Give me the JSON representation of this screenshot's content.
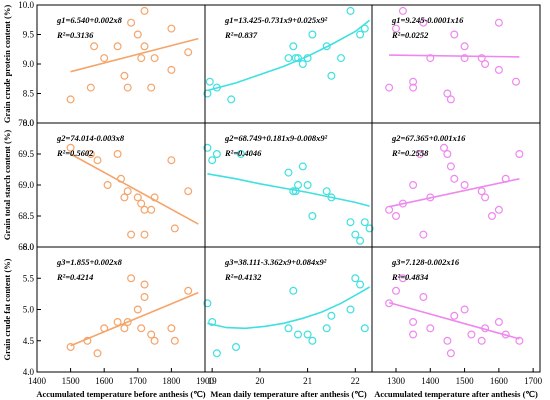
{
  "chart_data": [
    {
      "type": "scatter",
      "panel": "a1",
      "ylabel": "Grain crude protein content (%)",
      "xlim": [
        1400,
        1900
      ],
      "ylim": [
        8.0,
        10.0
      ],
      "equation": "g1=6.540+0.002x8",
      "r2": "R²=0.3136",
      "points": [
        [
          1500,
          8.4
        ],
        [
          1560,
          8.6
        ],
        [
          1570,
          9.3
        ],
        [
          1600,
          9.1
        ],
        [
          1640,
          9.3
        ],
        [
          1660,
          8.8
        ],
        [
          1670,
          8.6
        ],
        [
          1680,
          9.7
        ],
        [
          1700,
          9.5
        ],
        [
          1710,
          9.1
        ],
        [
          1720,
          9.9
        ],
        [
          1720,
          9.3
        ],
        [
          1740,
          8.6
        ],
        [
          1750,
          9.1
        ],
        [
          1800,
          9.6
        ],
        [
          1800,
          8.9
        ],
        [
          1850,
          9.2
        ]
      ],
      "fit": {
        "kind": "linear",
        "x": [
          1500,
          1880
        ],
        "y": [
          8.87,
          9.43
        ]
      },
      "color": "#f5a46a"
    },
    {
      "type": "scatter",
      "panel": "b1",
      "xlim": [
        18.85,
        22.35
      ],
      "ylim": [
        8.0,
        10.0
      ],
      "equation": "g1=13.425-0.731x9+0.025x9²",
      "r2": "R²=0.837",
      "points": [
        [
          18.9,
          8.5
        ],
        [
          18.95,
          8.7
        ],
        [
          19.1,
          8.6
        ],
        [
          19.4,
          8.4
        ],
        [
          20.6,
          9.1
        ],
        [
          20.7,
          9.3
        ],
        [
          20.75,
          9.1
        ],
        [
          20.8,
          9.1
        ],
        [
          20.9,
          9.0
        ],
        [
          21.0,
          9.1
        ],
        [
          21.1,
          9.5
        ],
        [
          21.4,
          9.3
        ],
        [
          21.5,
          8.8
        ],
        [
          21.7,
          9.1
        ],
        [
          21.9,
          9.9
        ],
        [
          22.1,
          9.5
        ],
        [
          22.2,
          9.6
        ]
      ],
      "fit": {
        "kind": "curve",
        "x": [
          18.9,
          19.5,
          20.0,
          20.5,
          21.0,
          21.5,
          22.0,
          22.3
        ],
        "y": [
          8.55,
          8.68,
          8.82,
          8.96,
          9.13,
          9.33,
          9.55,
          9.74
        ]
      },
      "color": "#40e0e0"
    },
    {
      "type": "scatter",
      "panel": "c1",
      "xlim": [
        1230,
        1720
      ],
      "ylim": [
        8.0,
        10.0
      ],
      "equation": "g1=9.245-0.0001x16",
      "r2": "R²=0.0252",
      "points": [
        [
          1280,
          8.6
        ],
        [
          1300,
          9.6
        ],
        [
          1320,
          9.9
        ],
        [
          1350,
          8.7
        ],
        [
          1350,
          8.6
        ],
        [
          1380,
          9.7
        ],
        [
          1400,
          9.1
        ],
        [
          1450,
          8.5
        ],
        [
          1460,
          8.4
        ],
        [
          1470,
          9.5
        ],
        [
          1500,
          9.3
        ],
        [
          1500,
          9.1
        ],
        [
          1550,
          9.1
        ],
        [
          1560,
          9.0
        ],
        [
          1600,
          9.7
        ],
        [
          1600,
          8.9
        ],
        [
          1650,
          8.7
        ]
      ],
      "fit": {
        "kind": "linear",
        "x": [
          1280,
          1660
        ],
        "y": [
          9.15,
          9.12
        ]
      },
      "color": "#ee88ee"
    },
    {
      "type": "scatter",
      "panel": "a2",
      "ylabel": "Grain total starch content (%)",
      "xlim": [
        1400,
        1900
      ],
      "ylim": [
        68.0,
        70.0
      ],
      "equation": "g2=74.014-0.003x8",
      "r2": "R²=0.5602",
      "points": [
        [
          1500,
          69.6
        ],
        [
          1560,
          69.5
        ],
        [
          1580,
          69.4
        ],
        [
          1610,
          69.0
        ],
        [
          1640,
          69.5
        ],
        [
          1650,
          69.1
        ],
        [
          1660,
          68.8
        ],
        [
          1670,
          68.9
        ],
        [
          1680,
          68.2
        ],
        [
          1700,
          68.8
        ],
        [
          1710,
          68.7
        ],
        [
          1720,
          68.6
        ],
        [
          1720,
          68.2
        ],
        [
          1740,
          68.6
        ],
        [
          1750,
          68.8
        ],
        [
          1800,
          69.4
        ],
        [
          1810,
          68.3
        ],
        [
          1850,
          68.9
        ]
      ],
      "fit": {
        "kind": "linear",
        "x": [
          1500,
          1880
        ],
        "y": [
          69.5,
          68.37
        ]
      },
      "color": "#f5a46a"
    },
    {
      "type": "scatter",
      "panel": "b2",
      "xlim": [
        18.85,
        22.35
      ],
      "ylim": [
        68.0,
        70.0
      ],
      "equation": "g2=68.749+0.181x9-0.008x9²",
      "r2": "R²=0.4046",
      "points": [
        [
          18.9,
          69.6
        ],
        [
          19.0,
          69.4
        ],
        [
          19.1,
          69.5
        ],
        [
          19.6,
          69.5
        ],
        [
          20.6,
          69.2
        ],
        [
          20.7,
          68.9
        ],
        [
          20.75,
          68.9
        ],
        [
          20.8,
          69.0
        ],
        [
          20.9,
          69.3
        ],
        [
          21.0,
          69.0
        ],
        [
          21.1,
          68.5
        ],
        [
          21.4,
          68.9
        ],
        [
          21.5,
          68.8
        ],
        [
          21.9,
          68.4
        ],
        [
          22.0,
          68.2
        ],
        [
          22.1,
          68.1
        ],
        [
          22.2,
          68.4
        ],
        [
          22.3,
          68.3
        ]
      ],
      "fit": {
        "kind": "curve",
        "x": [
          18.9,
          19.5,
          20.0,
          20.5,
          21.0,
          21.5,
          22.0,
          22.3
        ],
        "y": [
          69.18,
          69.1,
          69.02,
          68.95,
          68.88,
          68.8,
          68.72,
          68.66
        ]
      },
      "color": "#40e0e0"
    },
    {
      "type": "scatter",
      "panel": "c2",
      "xlim": [
        1230,
        1720
      ],
      "ylim": [
        68.0,
        70.0
      ],
      "equation": "g2=67.365+0.001x16",
      "r2": "R²=0.2558",
      "points": [
        [
          1280,
          68.6
        ],
        [
          1300,
          68.5
        ],
        [
          1320,
          68.7
        ],
        [
          1350,
          69.0
        ],
        [
          1370,
          69.5
        ],
        [
          1380,
          68.2
        ],
        [
          1400,
          68.8
        ],
        [
          1440,
          69.6
        ],
        [
          1450,
          69.5
        ],
        [
          1460,
          69.3
        ],
        [
          1470,
          69.1
        ],
        [
          1500,
          69.0
        ],
        [
          1550,
          68.9
        ],
        [
          1560,
          68.8
        ],
        [
          1580,
          68.5
        ],
        [
          1600,
          68.6
        ],
        [
          1620,
          69.1
        ],
        [
          1660,
          69.5
        ]
      ],
      "fit": {
        "kind": "linear",
        "x": [
          1280,
          1660
        ],
        "y": [
          68.65,
          69.1
        ]
      },
      "color": "#ee88ee"
    },
    {
      "type": "scatter",
      "panel": "a3",
      "ylabel": "Grain crude fat content (%)",
      "xlim": [
        1400,
        1900
      ],
      "ylim": [
        4.0,
        6.0
      ],
      "equation": "g3=1.855+0.002x8",
      "r2": "R²=0.4214",
      "points": [
        [
          1500,
          4.4
        ],
        [
          1550,
          4.5
        ],
        [
          1580,
          4.3
        ],
        [
          1600,
          4.7
        ],
        [
          1640,
          4.8
        ],
        [
          1660,
          4.7
        ],
        [
          1670,
          4.8
        ],
        [
          1680,
          5.5
        ],
        [
          1700,
          5.0
        ],
        [
          1710,
          4.7
        ],
        [
          1720,
          5.4
        ],
        [
          1720,
          5.2
        ],
        [
          1740,
          4.6
        ],
        [
          1750,
          4.5
        ],
        [
          1800,
          4.7
        ],
        [
          1810,
          4.5
        ],
        [
          1850,
          5.3
        ]
      ],
      "fit": {
        "kind": "linear",
        "x": [
          1500,
          1880
        ],
        "y": [
          4.42,
          5.27
        ]
      },
      "color": "#f5a46a"
    },
    {
      "type": "scatter",
      "panel": "b3",
      "xlim": [
        18.85,
        22.35
      ],
      "ylim": [
        4.0,
        6.0
      ],
      "equation": "g3=38.111-3.362x9+0.084x9²",
      "r2": "R²=0.4132",
      "points": [
        [
          18.9,
          5.1
        ],
        [
          19.0,
          4.8
        ],
        [
          19.1,
          4.3
        ],
        [
          19.5,
          4.4
        ],
        [
          20.6,
          4.7
        ],
        [
          20.7,
          5.3
        ],
        [
          20.8,
          4.6
        ],
        [
          21.0,
          4.6
        ],
        [
          21.1,
          4.5
        ],
        [
          21.4,
          4.7
        ],
        [
          21.5,
          4.9
        ],
        [
          21.9,
          5.0
        ],
        [
          22.0,
          5.5
        ],
        [
          22.1,
          5.4
        ],
        [
          22.2,
          4.7
        ]
      ],
      "fit": {
        "kind": "curve",
        "x": [
          18.9,
          19.3,
          19.7,
          20.1,
          20.5,
          20.9,
          21.3,
          21.7,
          22.1,
          22.3
        ],
        "y": [
          4.78,
          4.71,
          4.7,
          4.73,
          4.78,
          4.86,
          4.96,
          5.1,
          5.27,
          5.36
        ]
      },
      "color": "#40e0e0"
    },
    {
      "type": "scatter",
      "panel": "c3",
      "xlim": [
        1230,
        1720
      ],
      "ylim": [
        4.0,
        6.0
      ],
      "equation": "g3=7.128-0.002x16",
      "r2": "R²=0.4834",
      "points": [
        [
          1280,
          5.1
        ],
        [
          1300,
          5.3
        ],
        [
          1320,
          5.5
        ],
        [
          1350,
          4.8
        ],
        [
          1350,
          4.6
        ],
        [
          1380,
          5.2
        ],
        [
          1400,
          4.7
        ],
        [
          1450,
          4.5
        ],
        [
          1460,
          4.3
        ],
        [
          1470,
          4.9
        ],
        [
          1500,
          5.0
        ],
        [
          1520,
          4.6
        ],
        [
          1550,
          4.5
        ],
        [
          1560,
          4.7
        ],
        [
          1600,
          4.8
        ],
        [
          1620,
          4.6
        ],
        [
          1660,
          4.5
        ]
      ],
      "fit": {
        "kind": "linear",
        "x": [
          1280,
          1660
        ],
        "y": [
          5.11,
          4.53
        ]
      },
      "color": "#ee88ee"
    }
  ],
  "axes": {
    "y_row1_ticks": [
      "8.0",
      "8.5",
      "9.0",
      "9.5",
      "10.0"
    ],
    "y_row2_ticks": [
      "68.0",
      "68.5",
      "69.0",
      "69.5",
      "70.0"
    ],
    "y_row3_ticks": [
      "4.0",
      "4.5",
      "5.0",
      "5.5",
      "6.0"
    ],
    "x_col1_ticks": [
      "1400",
      "1500",
      "1600",
      "1700",
      "1800",
      "1900"
    ],
    "x_col2_ticks": [
      "19",
      "20",
      "21",
      "22"
    ],
    "x_col3_ticks": [
      "1300",
      "1400",
      "1500",
      "1600",
      "1700"
    ],
    "x_col1_label": "Accumulated temperature before anthesis (℃)",
    "x_col2_label": "Mean daily temperature after anthesis (℃)",
    "x_col3_label": "Accumulated temperature after anthesis (℃)"
  }
}
